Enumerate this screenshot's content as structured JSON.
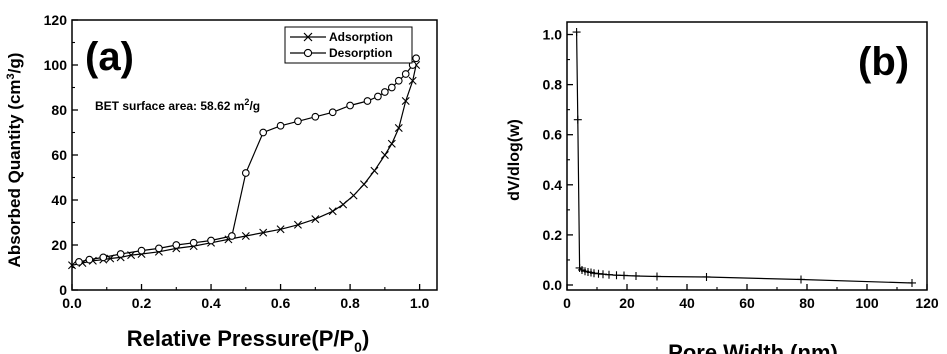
{
  "chart_data": [
    {
      "type": "line",
      "panel_label": "(a)",
      "title": "",
      "xlabel": "Relative Pressure(P/P",
      "xlabel_sub": "0",
      "xlabel_end": ")",
      "ylabel": "Absorbed Quantity (cm",
      "ylabel_sup": "3",
      "ylabel_end": "/g)",
      "annotation": "BET surface area: 58.62 m",
      "annotation_sup": "2",
      "annotation_end": "/g",
      "xlim": [
        0.0,
        1.05
      ],
      "ylim": [
        0,
        120
      ],
      "xticks": [
        0.0,
        0.2,
        0.4,
        0.6,
        0.8,
        1.0
      ],
      "xtick_labels": [
        "0.0",
        "0.2",
        "0.4",
        "0.6",
        "0.8",
        "1.0"
      ],
      "yticks": [
        0,
        20,
        40,
        60,
        80,
        100,
        120
      ],
      "ytick_labels": [
        "0",
        "20",
        "40",
        "60",
        "80",
        "100",
        "120"
      ],
      "legend_position": "top-right",
      "series": [
        {
          "name": "Adsorption",
          "marker": "x",
          "x": [
            0.0,
            0.03,
            0.06,
            0.09,
            0.11,
            0.14,
            0.17,
            0.2,
            0.25,
            0.3,
            0.35,
            0.4,
            0.45,
            0.5,
            0.55,
            0.6,
            0.65,
            0.7,
            0.75,
            0.78,
            0.81,
            0.84,
            0.87,
            0.9,
            0.92,
            0.94,
            0.96,
            0.98,
            0.99
          ],
          "y": [
            11,
            12,
            13,
            13.5,
            14,
            14.5,
            15.5,
            16,
            17,
            18.5,
            19.5,
            21,
            22.5,
            24,
            25.5,
            27,
            29,
            31.5,
            35,
            38,
            42,
            47,
            53,
            60,
            65,
            72,
            84,
            93,
            100
          ]
        },
        {
          "name": "Desorption",
          "marker": "o",
          "x": [
            0.99,
            0.98,
            0.96,
            0.94,
            0.92,
            0.9,
            0.88,
            0.85,
            0.8,
            0.75,
            0.7,
            0.65,
            0.6,
            0.55,
            0.5,
            0.46,
            0.4,
            0.35,
            0.3,
            0.25,
            0.2,
            0.14,
            0.09,
            0.05,
            0.02
          ],
          "y": [
            103,
            100,
            96,
            93,
            90,
            88,
            86,
            84,
            82,
            79,
            77,
            75,
            73,
            70,
            52,
            24,
            22,
            21,
            20,
            18.5,
            17.5,
            16,
            14.5,
            13.5,
            12.5
          ]
        }
      ]
    },
    {
      "type": "line",
      "panel_label": "(b)",
      "title": "",
      "xlabel": "Pore Width (nm)",
      "ylabel": "dV/dlog(w)",
      "xlim": [
        0,
        120
      ],
      "ylim": [
        -0.02,
        1.05
      ],
      "xticks": [
        0,
        20,
        40,
        60,
        80,
        100,
        120
      ],
      "xtick_labels": [
        "0",
        "20",
        "40",
        "60",
        "80",
        "100",
        "120"
      ],
      "yticks": [
        0.0,
        0.2,
        0.4,
        0.6,
        0.8,
        1.0
      ],
      "ytick_labels": [
        "0.0",
        "0.2",
        "0.4",
        "0.6",
        "0.8",
        "1.0"
      ],
      "series": [
        {
          "marker": "+",
          "x": [
            3.2,
            3.6,
            4.2,
            5,
            6,
            7,
            8,
            9,
            10.5,
            12,
            14,
            16.5,
            19,
            23,
            30,
            46.5,
            78,
            115
          ],
          "y": [
            1.01,
            0.66,
            0.068,
            0.06,
            0.055,
            0.052,
            0.05,
            0.047,
            0.045,
            0.043,
            0.041,
            0.039,
            0.038,
            0.036,
            0.034,
            0.032,
            0.022,
            0.008
          ]
        }
      ]
    }
  ]
}
